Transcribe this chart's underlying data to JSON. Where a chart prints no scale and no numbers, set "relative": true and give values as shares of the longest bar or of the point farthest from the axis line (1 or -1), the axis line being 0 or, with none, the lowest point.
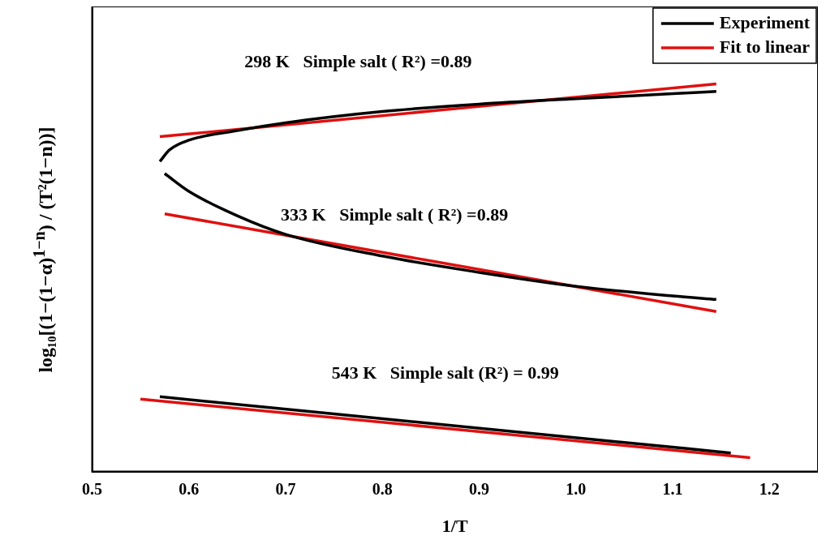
{
  "chart_data": {
    "type": "line",
    "xlabel": "1/T",
    "ylabel": "log₁₀[(1−(1−α)$^{1−n}$) / (T²(1−n))]",
    "relative": true,
    "xlim": [
      0.5,
      1.25
    ],
    "xticks": [
      0.5,
      0.6,
      0.7,
      0.8,
      0.9,
      {
        "value": 1,
        "label": "1.0"
      },
      1.1,
      1.2
    ],
    "legend": "top right",
    "grid": false,
    "marker": "none",
    "line_style": "solid",
    "series": [
      {
        "name": "Experiment",
        "color": "#000000",
        "x": [
          0.57,
          0.58,
          0.6,
          0.65,
          0.7,
          0.8,
          0.9,
          1.0,
          1.1,
          1.145
        ],
        "values": [
          0.8,
          0.83,
          0.855,
          0.88,
          0.9,
          0.929,
          0.948,
          0.962,
          0.975,
          0.981
        ]
      },
      {
        "name": "Fit to linear",
        "color": "#e01010",
        "x": [
          0.57,
          1.145
        ],
        "values": [
          0.864,
          1.0
        ]
      },
      {
        "color": "#000000",
        "x": [
          0.575,
          0.6,
          0.65,
          0.7,
          0.8,
          0.9,
          1.0,
          1.1,
          1.145
        ],
        "values": [
          0.769,
          0.723,
          0.66,
          0.612,
          0.556,
          0.514,
          0.478,
          0.453,
          0.444
        ]
      },
      {
        "color": "#e01010",
        "x": [
          0.575,
          1.145
        ],
        "values": [
          0.665,
          0.413
        ]
      },
      {
        "color": "#000000",
        "x": [
          0.57,
          1.16
        ],
        "values": [
          0.193,
          0.048
        ]
      },
      {
        "color": "#e01010",
        "x": [
          0.55,
          1.18
        ],
        "values": [
          0.187,
          0.036
        ]
      }
    ],
    "annotations": [
      "298 K   Simple salt ( R²) =0.89",
      "333 K   Simple salt ( R²) =0.89",
      "543 K   Simple salt (R²) = 0.99"
    ]
  }
}
